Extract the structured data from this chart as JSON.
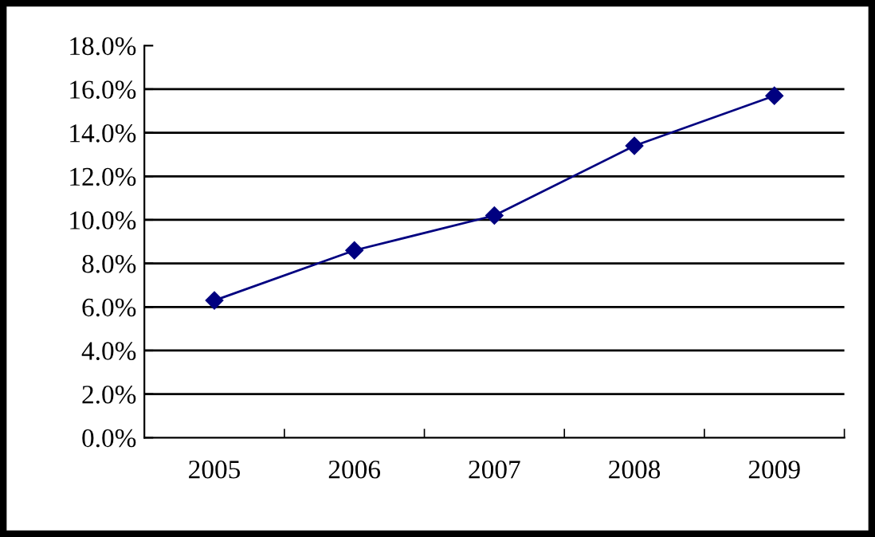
{
  "chart_data": {
    "type": "line",
    "categories": [
      "2005",
      "2006",
      "2007",
      "2008",
      "2009"
    ],
    "series": [
      {
        "color": "#000080",
        "values": [
          6.3,
          8.6,
          10.2,
          13.4,
          15.7
        ]
      }
    ],
    "marker": "diamond",
    "line_style": "solid",
    "grid": "y",
    "legend": false,
    "ylim": [
      0,
      18
    ],
    "yticks": [
      {
        "value": 0,
        "label": "0.0%"
      },
      {
        "value": 2,
        "label": "2.0%"
      },
      {
        "value": 4,
        "label": "4.0%"
      },
      {
        "value": 6,
        "label": "6.0%"
      },
      {
        "value": 8,
        "label": "8.0%"
      },
      {
        "value": 10,
        "label": "10.0%"
      },
      {
        "value": 12,
        "label": "12.0%"
      },
      {
        "value": 14,
        "label": "14.0%"
      },
      {
        "value": 16,
        "label": "16.0%"
      },
      {
        "value": 18,
        "label": "18.0%"
      }
    ]
  }
}
